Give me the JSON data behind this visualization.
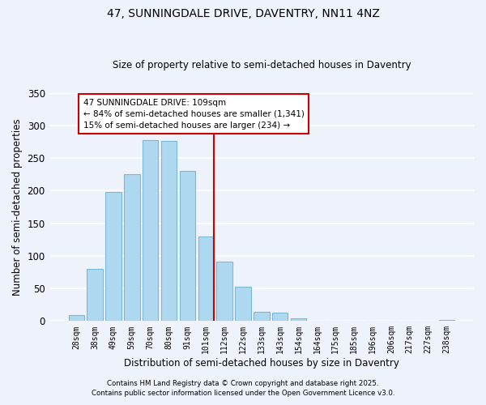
{
  "title": "47, SUNNINGDALE DRIVE, DAVENTRY, NN11 4NZ",
  "subtitle": "Size of property relative to semi-detached houses in Daventry",
  "xlabel": "Distribution of semi-detached houses by size in Daventry",
  "ylabel": "Number of semi-detached properties",
  "bar_labels": [
    "28sqm",
    "38sqm",
    "49sqm",
    "59sqm",
    "70sqm",
    "80sqm",
    "91sqm",
    "101sqm",
    "112sqm",
    "122sqm",
    "133sqm",
    "143sqm",
    "154sqm",
    "164sqm",
    "175sqm",
    "185sqm",
    "196sqm",
    "206sqm",
    "217sqm",
    "227sqm",
    "238sqm"
  ],
  "bar_values": [
    9,
    80,
    198,
    225,
    278,
    276,
    230,
    130,
    91,
    53,
    14,
    13,
    4,
    0,
    0,
    0,
    0,
    0,
    0,
    0,
    2
  ],
  "bar_color": "#add8f0",
  "bar_edge_color": "#7ab8d8",
  "highlight_bar_index": 7,
  "marker_label": "47 SUNNINGDALE DRIVE: 109sqm",
  "pct_smaller": 84,
  "count_smaller": 1341,
  "pct_larger": 15,
  "count_larger": 234,
  "annotation_box_color": "#ffffff",
  "annotation_box_edge": "#cc0000",
  "vline_color": "#cc0000",
  "ylim": [
    0,
    350
  ],
  "yticks": [
    0,
    50,
    100,
    150,
    200,
    250,
    300,
    350
  ],
  "footnote1": "Contains HM Land Registry data © Crown copyright and database right 2025.",
  "footnote2": "Contains public sector information licensed under the Open Government Licence v3.0.",
  "background_color": "#eef2fa",
  "grid_color": "#ffffff"
}
